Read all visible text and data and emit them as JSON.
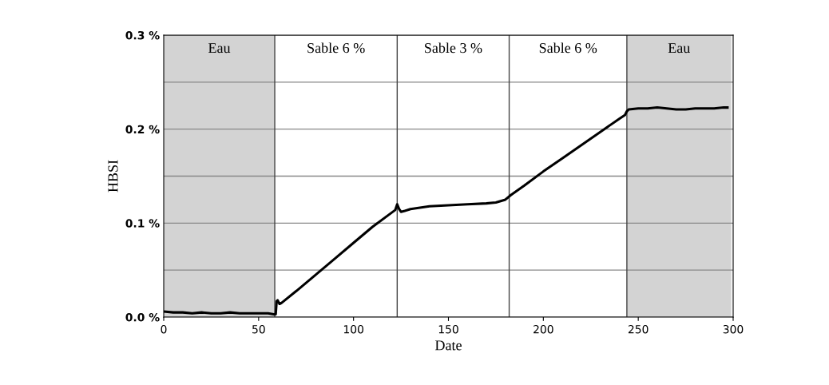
{
  "chart_data": {
    "type": "line",
    "xlabel": "Date",
    "ylabel": "HBSI",
    "xlim": [
      0,
      300
    ],
    "ylim": [
      0,
      0.3
    ],
    "xticks": [
      0,
      50,
      100,
      150,
      200,
      250,
      300
    ],
    "yticks": [
      {
        "value": 0,
        "label": "0.0 %"
      },
      {
        "value": 0.05,
        "label": null
      },
      {
        "value": 0.1,
        "label": "0.1 %"
      },
      {
        "value": 0.15,
        "label": null
      },
      {
        "value": 0.2,
        "label": "0.2 %"
      },
      {
        "value": 0.25,
        "label": null
      },
      {
        "value": 0.3,
        "label": "0.3 %"
      }
    ],
    "grid": "y",
    "legend": false,
    "marker": "none",
    "line_style": "solid",
    "bands": [
      {
        "axis": "x",
        "from": 0,
        "to": 58.5,
        "label": "Eau",
        "color": "#d3d3d3"
      },
      {
        "axis": "x",
        "from": 244,
        "to": 299,
        "label": "Eau",
        "color": "#d3d3d3"
      }
    ],
    "ref_lines": [
      {
        "axis": "x",
        "value": 58.5,
        "label": "Sable 6 %",
        "color": "#444444"
      },
      {
        "axis": "x",
        "value": 123,
        "label": "Sable 3 %",
        "color": "#444444"
      },
      {
        "axis": "x",
        "value": 182,
        "label": "Sable 6 %",
        "color": "#444444"
      },
      {
        "axis": "x",
        "value": 244,
        "color": "#444444"
      }
    ],
    "series": [
      {
        "color": "#000000",
        "x": [
          0,
          5,
          10,
          15,
          20,
          25,
          30,
          35,
          40,
          45,
          50,
          55,
          58,
          59,
          59.5,
          60,
          61,
          62,
          70,
          80,
          90,
          100,
          110,
          120,
          122,
          123,
          124,
          125,
          127,
          130,
          140,
          150,
          160,
          170,
          175,
          180,
          183,
          190,
          200,
          210,
          220,
          230,
          240,
          243,
          244,
          245,
          250,
          255,
          260,
          265,
          270,
          275,
          280,
          285,
          290,
          295,
          297
        ],
        "values": [
          0.006,
          0.005,
          0.005,
          0.004,
          0.005,
          0.004,
          0.004,
          0.005,
          0.004,
          0.004,
          0.004,
          0.004,
          0.003,
          0.003,
          0.017,
          0.018,
          0.014,
          0.015,
          0.028,
          0.045,
          0.062,
          0.079,
          0.096,
          0.111,
          0.114,
          0.12,
          0.115,
          0.112,
          0.113,
          0.115,
          0.118,
          0.119,
          0.12,
          0.121,
          0.122,
          0.125,
          0.13,
          0.14,
          0.155,
          0.169,
          0.183,
          0.197,
          0.211,
          0.215,
          0.219,
          0.221,
          0.222,
          0.222,
          0.223,
          0.222,
          0.221,
          0.221,
          0.222,
          0.222,
          0.222,
          0.223,
          0.223
        ]
      }
    ]
  }
}
